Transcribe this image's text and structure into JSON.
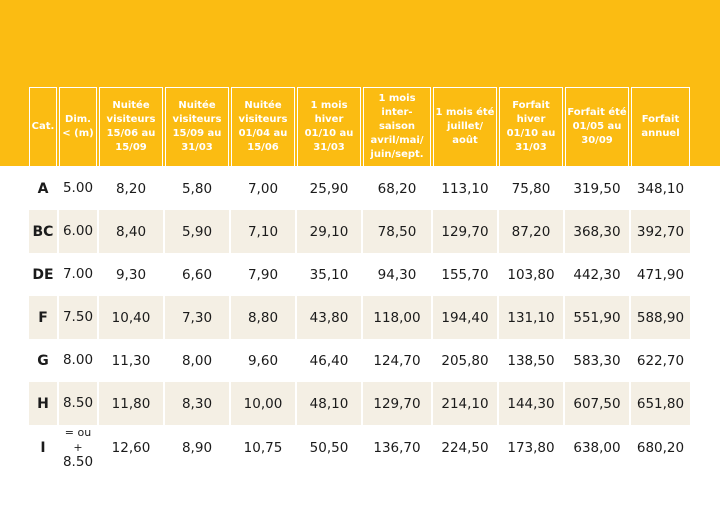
{
  "colors": {
    "accent": "#fbbc12",
    "header_text": "#ffffff",
    "stripe": "#f4efe4",
    "body_text": "#1b1b1b"
  },
  "table": {
    "headers": [
      "Cat.",
      "Dim. < (m)",
      "Nuitée visiteurs 15/06 au 15/09",
      "Nuitée visiteurs 15/09 au 31/03",
      "Nuitée visiteurs 01/04 au 15/06",
      "1 mois hiver 01/10 au 31/03",
      "1 mois inter-saison avril/mai/ juin/sept.",
      "1 mois été juillet/ août",
      "Forfait hiver 01/10 au 31/03",
      "Forfait été 01/05 au 30/09",
      "Forfait annuel"
    ],
    "rows": [
      {
        "cat": "A",
        "dim": "5.00",
        "values": [
          "8,20",
          "5,80",
          "7,00",
          "25,90",
          "68,20",
          "113,10",
          "75,80",
          "319,50",
          "348,10"
        ]
      },
      {
        "cat": "BC",
        "dim": "6.00",
        "values": [
          "8,40",
          "5,90",
          "7,10",
          "29,10",
          "78,50",
          "129,70",
          "87,20",
          "368,30",
          "392,70"
        ]
      },
      {
        "cat": "DE",
        "dim": "7.00",
        "values": [
          "9,30",
          "6,60",
          "7,90",
          "35,10",
          "94,30",
          "155,70",
          "103,80",
          "442,30",
          "471,90"
        ]
      },
      {
        "cat": "F",
        "dim": "7.50",
        "values": [
          "10,40",
          "7,30",
          "8,80",
          "43,80",
          "118,00",
          "194,40",
          "131,10",
          "551,90",
          "588,90"
        ]
      },
      {
        "cat": "G",
        "dim": "8.00",
        "values": [
          "11,30",
          "8,00",
          "9,60",
          "46,40",
          "124,70",
          "205,80",
          "138,50",
          "583,30",
          "622,70"
        ]
      },
      {
        "cat": "H",
        "dim": "8.50",
        "values": [
          "11,80",
          "8,30",
          "10,00",
          "48,10",
          "129,70",
          "214,10",
          "144,30",
          "607,50",
          "651,80"
        ]
      },
      {
        "cat": "I",
        "dim_prefix": "= ou +",
        "dim": "8.50",
        "values": [
          "12,60",
          "8,90",
          "10,75",
          "50,50",
          "136,70",
          "224,50",
          "173,80",
          "638,00",
          "680,20"
        ]
      }
    ]
  }
}
